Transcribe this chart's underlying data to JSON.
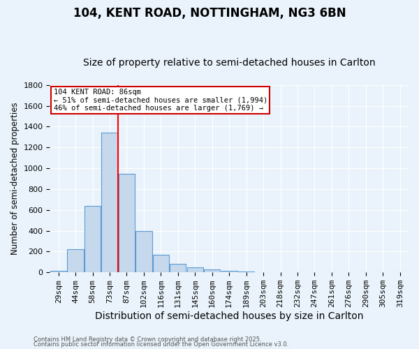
{
  "title1": "104, KENT ROAD, NOTTINGHAM, NG3 6BN",
  "title2": "Size of property relative to semi-detached houses in Carlton",
  "xlabel": "Distribution of semi-detached houses by size in Carlton",
  "ylabel": "Number of semi-detached properties",
  "categories": [
    "29sqm",
    "44sqm",
    "58sqm",
    "73sqm",
    "87sqm",
    "102sqm",
    "116sqm",
    "131sqm",
    "145sqm",
    "160sqm",
    "174sqm",
    "189sqm",
    "203sqm",
    "218sqm",
    "232sqm",
    "247sqm",
    "261sqm",
    "276sqm",
    "290sqm",
    "305sqm",
    "319sqm"
  ],
  "values": [
    15,
    225,
    640,
    1340,
    950,
    395,
    170,
    85,
    50,
    25,
    15,
    5,
    3,
    2,
    1,
    1,
    0,
    0,
    0,
    0,
    0
  ],
  "bar_color": "#c5d8ec",
  "bar_edge_color": "#5b9bd5",
  "red_line_bar_index": 3,
  "ylim": [
    0,
    1800
  ],
  "yticks": [
    0,
    200,
    400,
    600,
    800,
    1000,
    1200,
    1400,
    1600,
    1800
  ],
  "annotation_text": "104 KENT ROAD: 86sqm\n← 51% of semi-detached houses are smaller (1,994)\n46% of semi-detached houses are larger (1,769) →",
  "annotation_box_color": "#ffffff",
  "annotation_box_edge": "#cc0000",
  "footnote1": "Contains HM Land Registry data © Crown copyright and database right 2025.",
  "footnote2": "Contains public sector information licensed under the Open Government Licence v3.0.",
  "bg_color": "#eaf3fb",
  "plot_bg_color": "#eaf3fb",
  "grid_color": "#ffffff",
  "title1_fontsize": 12,
  "title2_fontsize": 10,
  "xlabel_fontsize": 10,
  "ylabel_fontsize": 8.5,
  "tick_fontsize": 8,
  "ann_fontsize": 7.5,
  "footnote_fontsize": 6
}
